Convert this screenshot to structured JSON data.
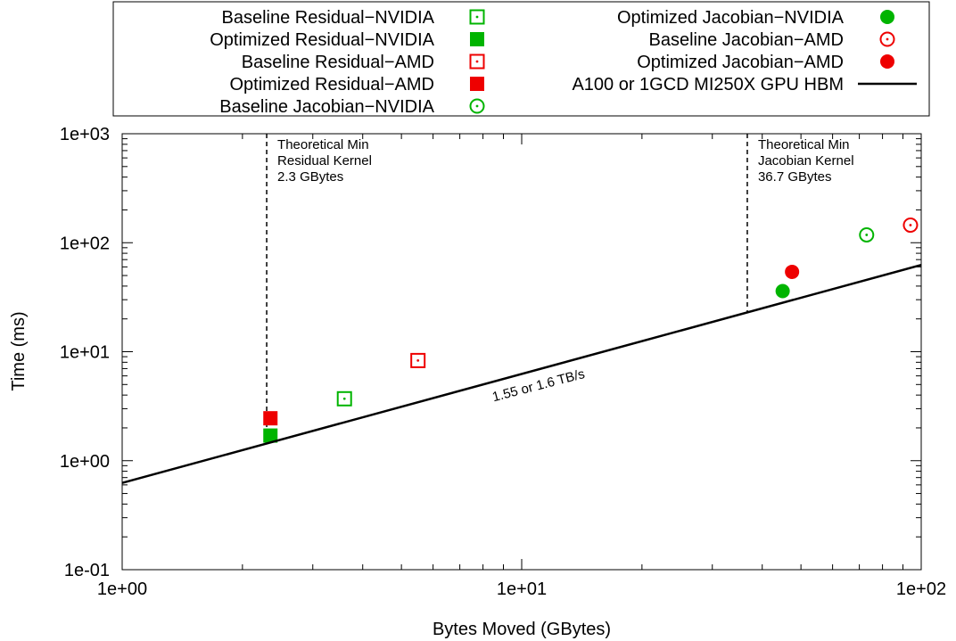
{
  "chart_data": {
    "type": "scatter",
    "xlabel": "Bytes Moved (GBytes)",
    "ylabel": "Time (ms)",
    "x_scale": "log",
    "y_scale": "log",
    "xlim": [
      1,
      100
    ],
    "ylim": [
      0.1,
      1000
    ],
    "x_ticks": [
      "1e+00",
      "1e+01",
      "1e+02"
    ],
    "y_ticks": [
      "1e-01",
      "1e+00",
      "1e+01",
      "1e+02",
      "1e+03"
    ],
    "grid": false,
    "legend_position": "top, outside plot, two columns",
    "series": [
      {
        "name": "Baseline Residual−NVIDIA",
        "marker": "square-dot",
        "color": "#00b400",
        "points": [
          {
            "x": 3.6,
            "y": 3.7
          }
        ]
      },
      {
        "name": "Optimized Residual−NVIDIA",
        "marker": "filled-square",
        "color": "#00b400",
        "points": [
          {
            "x": 2.35,
            "y": 1.7
          }
        ]
      },
      {
        "name": "Baseline Residual−AMD",
        "marker": "square-dot",
        "color": "#ee0000",
        "points": [
          {
            "x": 5.5,
            "y": 8.3
          }
        ]
      },
      {
        "name": "Optimized Residual−AMD",
        "marker": "filled-square",
        "color": "#ee0000",
        "points": [
          {
            "x": 2.35,
            "y": 2.45
          }
        ]
      },
      {
        "name": "Baseline Jacobian−NVIDIA",
        "marker": "circle-dot",
        "color": "#00b400",
        "points": [
          {
            "x": 73,
            "y": 118
          }
        ]
      },
      {
        "name": "Optimized Jacobian−NVIDIA",
        "marker": "filled-circle",
        "color": "#00b400",
        "points": [
          {
            "x": 45,
            "y": 36
          }
        ]
      },
      {
        "name": "Baseline Jacobian−AMD",
        "marker": "circle-dot",
        "color": "#ee0000",
        "points": [
          {
            "x": 94,
            "y": 145
          }
        ]
      },
      {
        "name": "Optimized Jacobian−AMD",
        "marker": "filled-circle",
        "color": "#ee0000",
        "points": [
          {
            "x": 47.5,
            "y": 54
          }
        ]
      },
      {
        "name": "A100 or 1GCD MI250X GPU HBM",
        "marker": "line",
        "color": "#000000",
        "points": [
          {
            "x": 1,
            "y": 0.625
          },
          {
            "x": 100,
            "y": 62.5
          }
        ]
      }
    ],
    "annotations": [
      {
        "text": "1.55 or 1.6 TB/s"
      },
      {
        "x": 2.3,
        "lines": [
          "Theoretical Min",
          "Residual Kernel",
          "2.3 GBytes"
        ]
      },
      {
        "x": 36.7,
        "lines": [
          "Theoretical Min",
          "Jacobian Kernel",
          "36.7 GBytes"
        ]
      }
    ]
  }
}
